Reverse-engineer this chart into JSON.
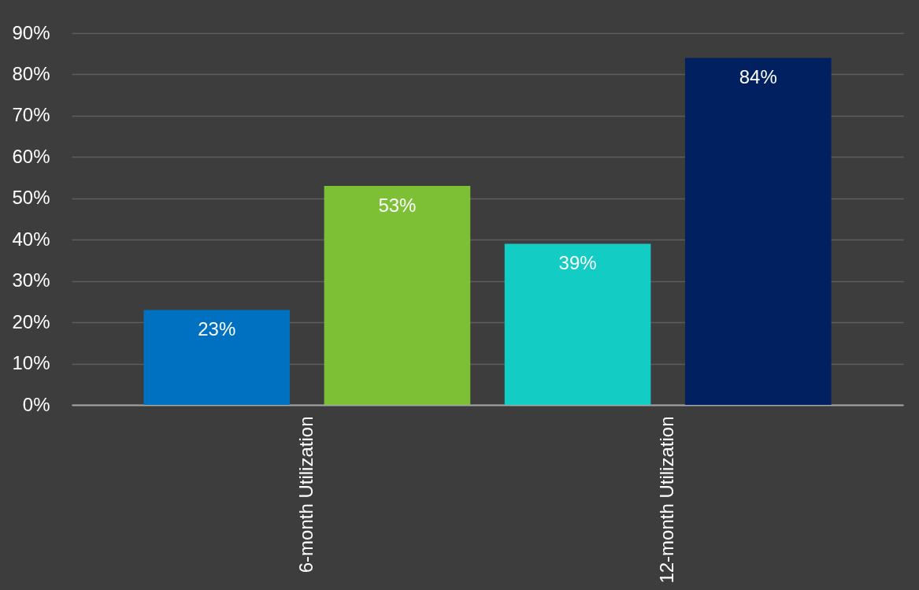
{
  "chart_data": {
    "type": "bar",
    "categories": [
      "6-month Utilization",
      "12-month Utilization"
    ],
    "series": [
      {
        "colors": [
          "#0070c0",
          "#13cdc4"
        ],
        "values": [
          23,
          39
        ],
        "value_labels": [
          "23%",
          "39%"
        ]
      },
      {
        "colors": [
          "#7dc035",
          "#002060"
        ],
        "values": [
          53,
          84
        ],
        "value_labels": [
          "53%",
          "84%"
        ]
      }
    ],
    "ylim": [
      0,
      90
    ],
    "yticks": [
      {
        "value": 0,
        "label": "0%"
      },
      {
        "value": 10,
        "label": "10%"
      },
      {
        "value": 20,
        "label": "20%"
      },
      {
        "value": 30,
        "label": "30%"
      },
      {
        "value": 40,
        "label": "40%"
      },
      {
        "value": 50,
        "label": "50%"
      },
      {
        "value": 60,
        "label": "60%"
      },
      {
        "value": 70,
        "label": "70%"
      },
      {
        "value": 80,
        "label": "80%"
      },
      {
        "value": 90,
        "label": "90%"
      }
    ],
    "grid": "y",
    "legend": false
  }
}
